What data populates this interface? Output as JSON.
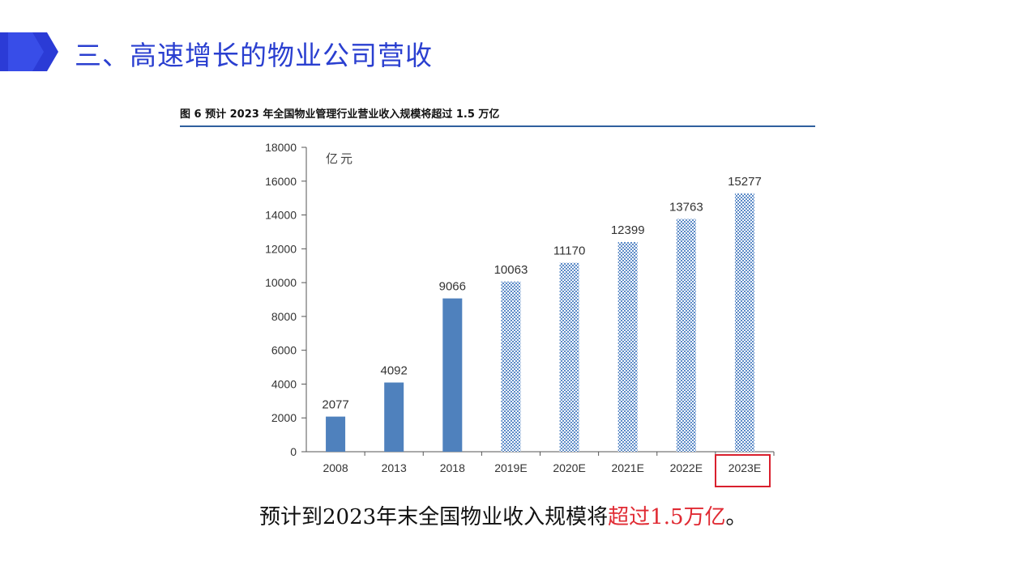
{
  "slide": {
    "title": "三、高速增长的物业公司营收",
    "accent_color": "#2a3fd0"
  },
  "figure": {
    "caption": "图 6  预计 2023 年全国物业管理行业营业收入规模将超过 1.5 万亿"
  },
  "chart_data": {
    "type": "bar",
    "title": "",
    "xlabel": "",
    "ylabel": "亿元",
    "categories": [
      "2008",
      "2013",
      "2018",
      "2019E",
      "2020E",
      "2021E",
      "2022E",
      "2023E"
    ],
    "values": [
      2077,
      4092,
      9066,
      10063,
      11170,
      12399,
      13763,
      15277
    ],
    "data_labels": [
      "2077",
      "4092",
      "9066",
      "10063",
      "11170",
      "12399",
      "13763",
      "15277"
    ],
    "ylim": [
      0,
      18000
    ],
    "yticks": [
      "0",
      "2000",
      "4000",
      "6000",
      "8000",
      "10000",
      "12000",
      "14000",
      "16000",
      "18000"
    ],
    "grid": false,
    "legend": "none",
    "actual_color": "#4f81bd",
    "forecast_style": "dotted pattern",
    "highlighted_category": "2023E",
    "highlight_color": "#d9202e"
  },
  "footer": {
    "text_before": "预计到2023年末全国物业收入规模将",
    "text_highlight": "超过1.5万亿",
    "text_after": "。",
    "highlight_color": "#e02a33"
  }
}
